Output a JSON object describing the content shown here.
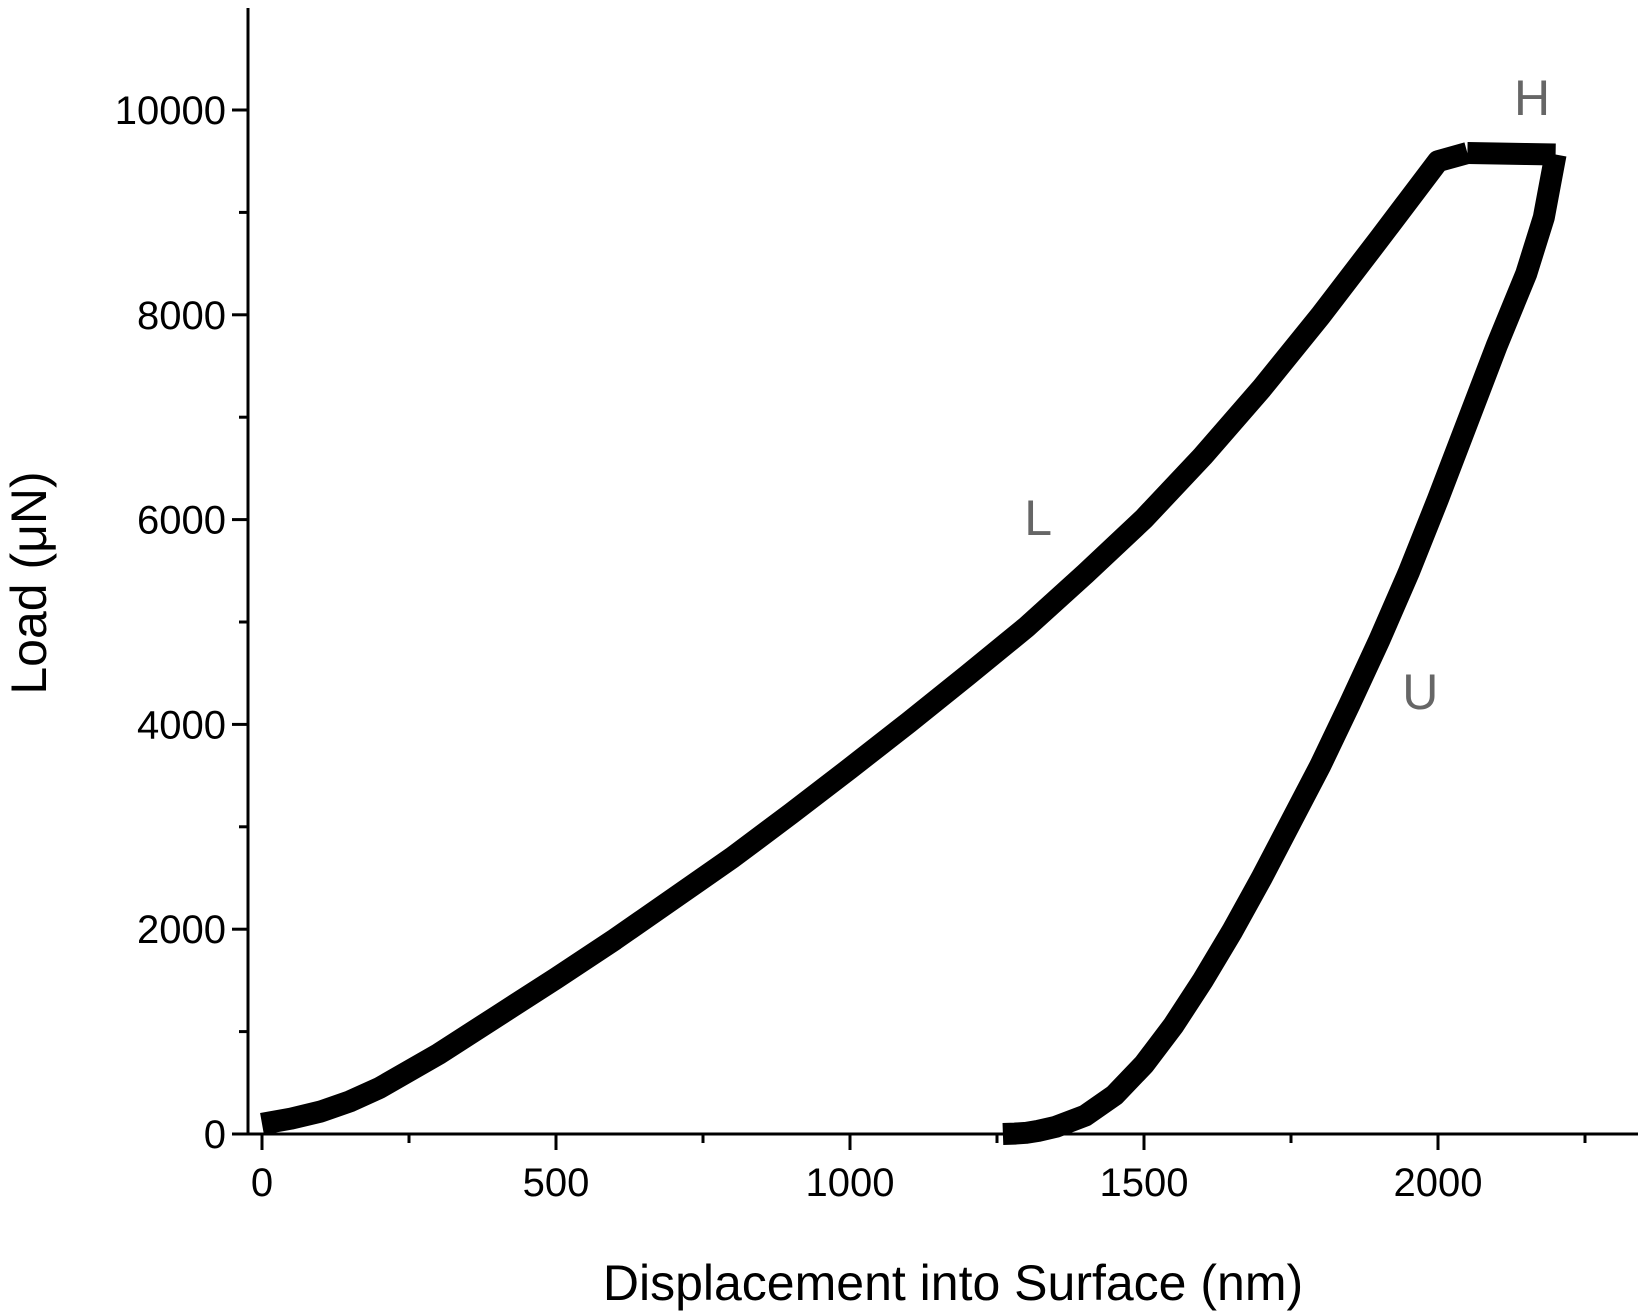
{
  "chart_data": {
    "type": "line",
    "title": "",
    "xlabel": "Displacement into Surface (nm)",
    "ylabel": "Load (μN)",
    "xlim": [
      -30,
      2350
    ],
    "ylim": [
      0,
      11000
    ],
    "x_ticks": [
      0,
      500,
      1000,
      1500,
      2000
    ],
    "y_ticks": [
      0,
      2000,
      4000,
      6000,
      8000,
      10000
    ],
    "grid": false,
    "legend": "none",
    "line_color": "#000000",
    "series": [
      {
        "x": [
          0,
          50,
          100,
          150,
          200,
          300,
          400,
          500,
          600,
          700,
          800,
          900,
          1000,
          1100,
          1200,
          1300,
          1400,
          1500,
          1600,
          1700,
          1800,
          1900,
          2000,
          2050
        ],
        "y": [
          100,
          150,
          220,
          320,
          450,
          780,
          1150,
          1520,
          1900,
          2300,
          2700,
          3130,
          3570,
          4020,
          4480,
          4950,
          5470,
          6010,
          6620,
          7280,
          7990,
          8740,
          9500,
          9580
        ]
      },
      {
        "x": [
          2050,
          2100,
          2150,
          2200
        ],
        "y": [
          9580,
          9575,
          9570,
          9565
        ]
      },
      {
        "x": [
          2200,
          2180,
          2150,
          2100,
          2050,
          2000,
          1950,
          1900,
          1850,
          1800,
          1750,
          1700,
          1650,
          1600,
          1550,
          1500,
          1450,
          1400,
          1350,
          1320,
          1300,
          1280,
          1260
        ],
        "y": [
          9565,
          8950,
          8400,
          7700,
          6950,
          6200,
          5480,
          4820,
          4200,
          3600,
          3050,
          2500,
          1980,
          1500,
          1060,
          680,
          380,
          180,
          70,
          30,
          12,
          4,
          0
        ]
      }
    ],
    "annotations": [
      {
        "text": "H",
        "x": 2160,
        "y": 9950
      },
      {
        "text": "L",
        "x": 1320,
        "y": 5850
      },
      {
        "text": "U",
        "x": 1970,
        "y": 4150
      }
    ]
  }
}
